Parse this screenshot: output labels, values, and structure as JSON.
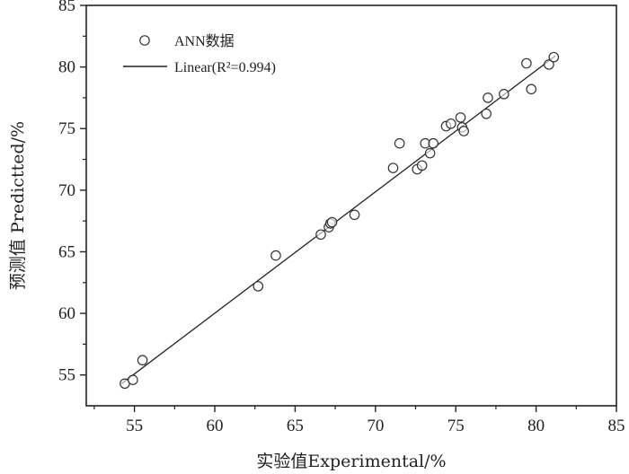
{
  "chart_data": {
    "type": "scatter",
    "title": "",
    "xlabel": "实验值Experimental/%",
    "ylabel": "预测值 Predictted/%",
    "xlim": [
      52,
      85
    ],
    "ylim": [
      52.5,
      85
    ],
    "xticks": [
      55,
      60,
      65,
      70,
      75,
      80,
      85
    ],
    "yticks": [
      55,
      60,
      65,
      70,
      75,
      80,
      85
    ],
    "legend_position": "top-left",
    "grid": false,
    "series": [
      {
        "name": "ANN数据",
        "marker": "open-circle",
        "points": [
          [
            54.4,
            54.3
          ],
          [
            54.9,
            54.6
          ],
          [
            55.5,
            56.2
          ],
          [
            62.7,
            62.2
          ],
          [
            63.8,
            64.7
          ],
          [
            66.6,
            66.4
          ],
          [
            67.1,
            67.0
          ],
          [
            67.2,
            67.3
          ],
          [
            67.3,
            67.4
          ],
          [
            68.7,
            68.0
          ],
          [
            71.1,
            71.8
          ],
          [
            71.5,
            73.8
          ],
          [
            72.6,
            71.7
          ],
          [
            72.9,
            72.0
          ],
          [
            73.1,
            73.8
          ],
          [
            73.4,
            73.0
          ],
          [
            73.6,
            73.8
          ],
          [
            74.4,
            75.2
          ],
          [
            74.7,
            75.4
          ],
          [
            75.3,
            75.9
          ],
          [
            75.4,
            75.1
          ],
          [
            75.5,
            74.8
          ],
          [
            76.9,
            76.2
          ],
          [
            77.0,
            77.5
          ],
          [
            78.0,
            77.8
          ],
          [
            79.4,
            80.3
          ],
          [
            79.7,
            78.2
          ],
          [
            80.8,
            80.2
          ],
          [
            81.1,
            80.8
          ]
        ]
      },
      {
        "name": "Linear(R²=0.994)",
        "line": true,
        "x": [
          54.2,
          81.2
        ],
        "y": [
          54.3,
          80.9
        ]
      }
    ],
    "legend": [
      {
        "label": "ANN数据",
        "marker": "open-circle"
      },
      {
        "label": "Linear(R²=0.994)",
        "marker": "line"
      }
    ],
    "colors": {
      "marker_stroke": "#333333",
      "line": "#222222",
      "axis": "#222222"
    }
  }
}
